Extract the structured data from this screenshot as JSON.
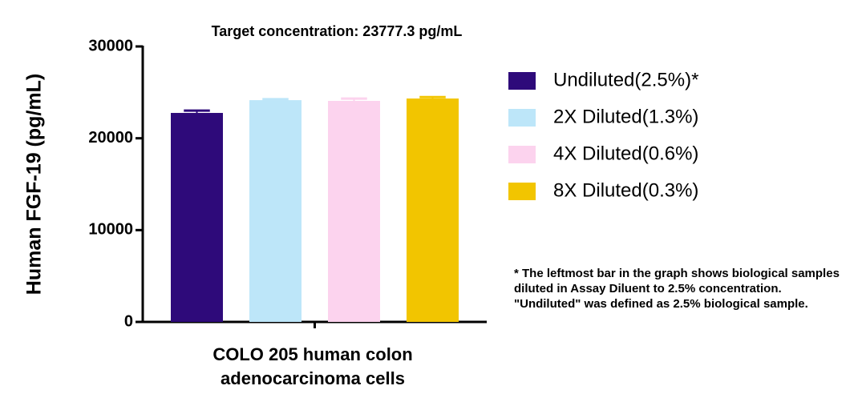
{
  "chart_data": {
    "type": "bar",
    "title": "Target concentration: 23777.3 pg/mL",
    "y_label": "Human FGF-19 (pg/mL)",
    "categories": [
      "COLO 205 human colon adenocarcinoma cells"
    ],
    "series": [
      {
        "name": "Undiluted(2.5%)*",
        "color": "#2e0a7a",
        "values": [
          22760
        ],
        "errors": [
          250
        ]
      },
      {
        "name": "2X Diluted(1.3%)",
        "color": "#bde6f9",
        "values": [
          24150
        ],
        "errors": [
          100
        ]
      },
      {
        "name": "4X Diluted(0.6%)",
        "color": "#fcd3ee",
        "values": [
          24070
        ],
        "errors": [
          250
        ]
      },
      {
        "name": "8X Diluted(0.3%)",
        "color": "#f2c500",
        "values": [
          24330
        ],
        "errors": [
          150
        ]
      }
    ],
    "ylim": [
      0,
      30000
    ],
    "yticks": [
      0,
      10000,
      20000,
      30000
    ],
    "legend": "right",
    "note": "* The leftmost bar in the graph shows biological samples diluted in Assay Diluent to 2.5% concentration. \"Undiluted\" was defined as 2.5% biological sample."
  }
}
